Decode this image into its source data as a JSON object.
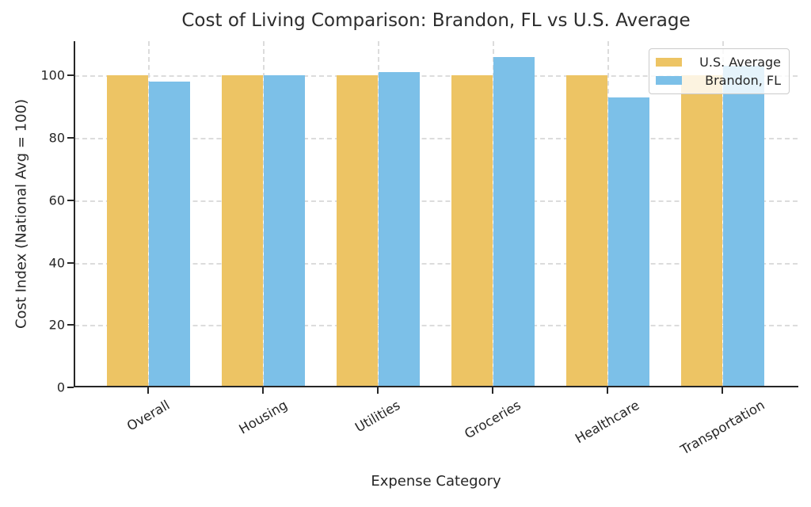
{
  "chart_data": {
    "type": "bar",
    "title": "Cost of Living Comparison: Brandon, FL vs U.S. Average",
    "xlabel": "Expense Category",
    "ylabel": "Cost Index (National Avg = 100)",
    "categories": [
      "Overall",
      "Housing",
      "Utilities",
      "Groceries",
      "Healthcare",
      "Transportation"
    ],
    "series": [
      {
        "name": "U.S. Average",
        "color": "#EDC464",
        "values": [
          100,
          100,
          100,
          100,
          100,
          100
        ]
      },
      {
        "name": "Brandon, FL",
        "color": "#7CC0E8",
        "values": [
          98,
          100,
          101,
          106,
          93,
          103
        ]
      }
    ],
    "yticks": [
      0,
      20,
      40,
      60,
      80,
      100
    ],
    "ylim": [
      0,
      111
    ],
    "grid": "dashed horizontal and vertical",
    "legend_position": "upper right",
    "colors": {
      "text": "#262626",
      "grid": "#dcdcdc",
      "background": "#ffffff",
      "us_average_bar": "#EDC464",
      "brandon_bar": "#7CC0E8"
    }
  }
}
